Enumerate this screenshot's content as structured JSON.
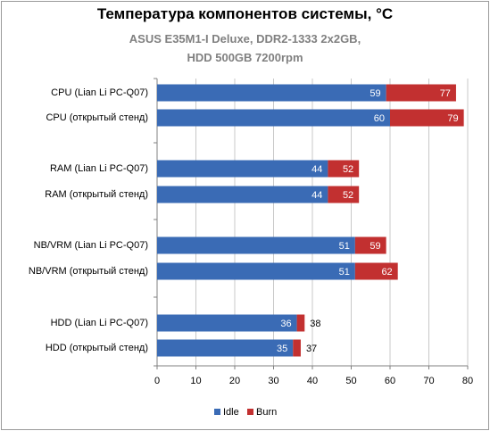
{
  "colors": {
    "idle": "#3a6bb5",
    "burn": "#c23030",
    "grid": "#c8c8c8",
    "axis": "#808080"
  },
  "chart_data": {
    "type": "bar",
    "orientation": "horizontal",
    "stacked_overlap": true,
    "title": "Температура компонентов системы, °С",
    "subtitle_line1": "ASUS E35M1-I Deluxe, DDR2-1333 2x2GB,",
    "subtitle_line2": "HDD 500GB 7200rpm",
    "categories": [
      "CPU (Lian Li PC-Q07)",
      "CPU (открытый стенд)",
      "RAM (Lian Li PC-Q07)",
      "RAM (открытый стенд)",
      "NB/VRM (Lian Li PC-Q07)",
      "NB/VRM (открытый стенд)",
      "HDD (Lian Li PC-Q07)",
      "HDD (открытый стенд)"
    ],
    "groups": [
      [
        0,
        1
      ],
      [
        2,
        3
      ],
      [
        4,
        5
      ],
      [
        6,
        7
      ]
    ],
    "series": [
      {
        "name": "Idle",
        "values": [
          59,
          60,
          44,
          44,
          51,
          51,
          36,
          35
        ]
      },
      {
        "name": "Burn",
        "values": [
          77,
          79,
          52,
          52,
          59,
          62,
          38,
          37
        ]
      }
    ],
    "xlim": [
      0,
      80
    ],
    "xticks": [
      0,
      10,
      20,
      30,
      40,
      50,
      60,
      70,
      80
    ],
    "grid": true,
    "legend_position": "bottom"
  }
}
